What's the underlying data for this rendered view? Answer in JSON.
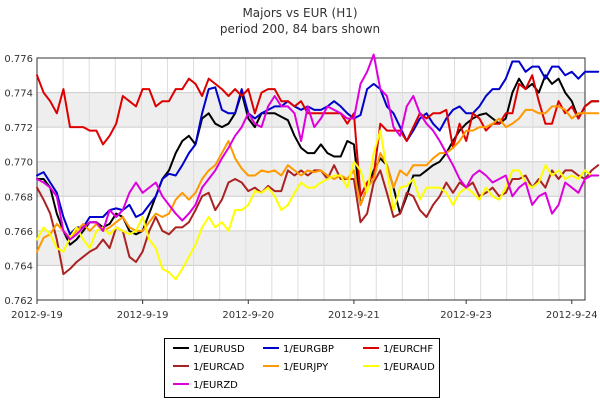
{
  "chart_data": {
    "type": "line",
    "title": "Majors vs EUR (H1)",
    "subtitle": "period 200, 84 bars shown",
    "ylim": [
      0.762,
      0.776
    ],
    "y_ticks": [
      "0.762",
      "0.764",
      "0.766",
      "0.768",
      "0.770",
      "0.772",
      "0.774",
      "0.776"
    ],
    "x_range": [
      0,
      83
    ],
    "x_ticks": [
      {
        "label": "2012-9-19",
        "index": 0
      },
      {
        "label": "2012-9-19",
        "index": 16
      },
      {
        "label": "2012-9-20",
        "index": 32
      },
      {
        "label": "2012-9-21",
        "index": 48
      },
      {
        "label": "2012-9-23",
        "index": 65
      },
      {
        "label": "2012-9-24",
        "index": 81
      }
    ],
    "grid": true,
    "legend_position": "bottom",
    "series": [
      {
        "name": "1/EURUSD",
        "color": "#000000",
        "values": [
          0.769,
          0.769,
          0.7685,
          0.767,
          0.766,
          0.7652,
          0.7655,
          0.766,
          0.7665,
          0.7665,
          0.7662,
          0.7664,
          0.767,
          0.7668,
          0.766,
          0.7658,
          0.766,
          0.767,
          0.768,
          0.769,
          0.7695,
          0.7705,
          0.7712,
          0.7715,
          0.771,
          0.7725,
          0.7728,
          0.7722,
          0.772,
          0.7722,
          0.7728,
          0.774,
          0.7725,
          0.772,
          0.7728,
          0.7728,
          0.7728,
          0.7726,
          0.7724,
          0.7715,
          0.7708,
          0.7705,
          0.7705,
          0.771,
          0.7705,
          0.7703,
          0.7703,
          0.7712,
          0.771,
          0.7675,
          0.7685,
          0.7695,
          0.7702,
          0.7698,
          0.7685,
          0.767,
          0.768,
          0.7692,
          0.7692,
          0.7695,
          0.7698,
          0.77,
          0.7705,
          0.7712,
          0.7718,
          0.7722,
          0.7725,
          0.7727,
          0.7728,
          0.7725,
          0.7722,
          0.7725,
          0.774,
          0.7748,
          0.7742,
          0.7745,
          0.774,
          0.775,
          0.7745,
          0.7748,
          0.774,
          0.7735,
          0.7725,
          0.7732,
          0.7735,
          0.7735
        ]
      },
      {
        "name": "1/EURGBP",
        "color": "#0000cc",
        "values": [
          0.7692,
          0.7694,
          0.7688,
          0.7682,
          0.7668,
          0.7658,
          0.7662,
          0.7662,
          0.7668,
          0.7668,
          0.7668,
          0.7672,
          0.7673,
          0.7672,
          0.7675,
          0.7668,
          0.767,
          0.7675,
          0.768,
          0.769,
          0.7693,
          0.7692,
          0.7698,
          0.7705,
          0.771,
          0.7728,
          0.7742,
          0.7743,
          0.773,
          0.7728,
          0.7728,
          0.7742,
          0.7728,
          0.7725,
          0.7728,
          0.773,
          0.7732,
          0.7732,
          0.7735,
          0.7732,
          0.773,
          0.7732,
          0.773,
          0.773,
          0.7732,
          0.7735,
          0.7732,
          0.7728,
          0.7725,
          0.7727,
          0.7742,
          0.7745,
          0.7742,
          0.7732,
          0.7728,
          0.772,
          0.7712,
          0.7718,
          0.7725,
          0.7728,
          0.7722,
          0.7718,
          0.7725,
          0.773,
          0.7732,
          0.7728,
          0.7728,
          0.7732,
          0.7738,
          0.7742,
          0.7742,
          0.7748,
          0.7758,
          0.7758,
          0.7752,
          0.7755,
          0.7755,
          0.7748,
          0.7755,
          0.7755,
          0.775,
          0.7752,
          0.7748,
          0.7752,
          0.7752,
          0.7752
        ]
      },
      {
        "name": "1/EURCHF",
        "color": "#dd0000",
        "values": [
          0.775,
          0.774,
          0.7735,
          0.7728,
          0.7742,
          0.772,
          0.772,
          0.772,
          0.7718,
          0.7718,
          0.771,
          0.7715,
          0.7722,
          0.7738,
          0.7735,
          0.7732,
          0.7742,
          0.7742,
          0.7732,
          0.7735,
          0.7735,
          0.7742,
          0.7742,
          0.7748,
          0.7745,
          0.7738,
          0.7748,
          0.7745,
          0.7742,
          0.7738,
          0.7742,
          0.7738,
          0.7742,
          0.7728,
          0.774,
          0.7742,
          0.7742,
          0.7735,
          0.7735,
          0.7732,
          0.7735,
          0.7728,
          0.7728,
          0.7728,
          0.7728,
          0.7728,
          0.7728,
          0.7722,
          0.7728,
          0.768,
          0.7688,
          0.7692,
          0.7722,
          0.7718,
          0.7718,
          0.7718,
          0.7712,
          0.772,
          0.7728,
          0.7725,
          0.7728,
          0.7728,
          0.773,
          0.7708,
          0.7722,
          0.7712,
          0.7728,
          0.7725,
          0.7718,
          0.7722,
          0.7722,
          0.7728,
          0.7728,
          0.7745,
          0.7742,
          0.775,
          0.7735,
          0.7722,
          0.7722,
          0.7735,
          0.7728,
          0.7732,
          0.7725,
          0.7732,
          0.7735,
          0.7735
        ]
      },
      {
        "name": "1/EURCAD",
        "color": "#aa2222",
        "values": [
          0.7685,
          0.7678,
          0.767,
          0.7655,
          0.7635,
          0.7638,
          0.7642,
          0.7645,
          0.7648,
          0.765,
          0.7655,
          0.765,
          0.7662,
          0.766,
          0.7645,
          0.7642,
          0.7648,
          0.766,
          0.7668,
          0.766,
          0.7658,
          0.7662,
          0.7662,
          0.7665,
          0.7672,
          0.768,
          0.7682,
          0.7672,
          0.7678,
          0.7688,
          0.769,
          0.7688,
          0.7683,
          0.7685,
          0.7682,
          0.7686,
          0.7683,
          0.7683,
          0.7695,
          0.7692,
          0.7695,
          0.7692,
          0.7695,
          0.7695,
          0.769,
          0.7698,
          0.769,
          0.769,
          0.769,
          0.7665,
          0.767,
          0.7688,
          0.7695,
          0.7682,
          0.7668,
          0.767,
          0.7682,
          0.768,
          0.7672,
          0.7668,
          0.7675,
          0.768,
          0.7688,
          0.7682,
          0.7688,
          0.7685,
          0.7688,
          0.768,
          0.7682,
          0.7685,
          0.768,
          0.7682,
          0.769,
          0.769,
          0.7692,
          0.7685,
          0.769,
          0.7685,
          0.7695,
          0.769,
          0.7695,
          0.7695,
          0.7692,
          0.769,
          0.7695,
          0.7698
        ]
      },
      {
        "name": "1/EURJPY",
        "color": "#ff9900",
        "values": [
          0.7648,
          0.7656,
          0.7658,
          0.7664,
          0.766,
          0.7656,
          0.766,
          0.7664,
          0.766,
          0.7664,
          0.766,
          0.7662,
          0.7665,
          0.7668,
          0.7662,
          0.766,
          0.766,
          0.7665,
          0.767,
          0.7668,
          0.767,
          0.7678,
          0.7682,
          0.7678,
          0.7682,
          0.769,
          0.7695,
          0.7698,
          0.7705,
          0.7712,
          0.7702,
          0.7696,
          0.7692,
          0.7692,
          0.7695,
          0.7694,
          0.7695,
          0.7692,
          0.7698,
          0.7695,
          0.7692,
          0.7695,
          0.7694,
          0.7695,
          0.7692,
          0.769,
          0.7692,
          0.769,
          0.7695,
          0.7675,
          0.7685,
          0.769,
          0.7705,
          0.7698,
          0.7685,
          0.7695,
          0.7692,
          0.7698,
          0.7698,
          0.7698,
          0.7702,
          0.7705,
          0.7705,
          0.7708,
          0.7712,
          0.7718,
          0.7718,
          0.772,
          0.772,
          0.7722,
          0.7725,
          0.772,
          0.7722,
          0.7725,
          0.773,
          0.773,
          0.7728,
          0.7728,
          0.7732,
          0.7732,
          0.773,
          0.7725,
          0.7728,
          0.7728,
          0.7728,
          0.7728
        ]
      },
      {
        "name": "1/EURAUD",
        "color": "#ffff00",
        "values": [
          0.7655,
          0.7662,
          0.7658,
          0.765,
          0.7648,
          0.7656,
          0.7662,
          0.7655,
          0.765,
          0.766,
          0.7662,
          0.7658,
          0.7662,
          0.766,
          0.7658,
          0.766,
          0.7668,
          0.7655,
          0.765,
          0.7638,
          0.7636,
          0.7632,
          0.7638,
          0.7645,
          0.7652,
          0.7662,
          0.7668,
          0.7662,
          0.7665,
          0.766,
          0.7672,
          0.7672,
          0.7675,
          0.7683,
          0.7682,
          0.7685,
          0.768,
          0.7672,
          0.7675,
          0.7682,
          0.7688,
          0.7685,
          0.7685,
          0.7688,
          0.769,
          0.7692,
          0.7692,
          0.7685,
          0.77,
          0.7695,
          0.7682,
          0.7705,
          0.7718,
          0.7695,
          0.7672,
          0.7685,
          0.7686,
          0.769,
          0.7678,
          0.7685,
          0.7685,
          0.7685,
          0.7682,
          0.7675,
          0.7682,
          0.7685,
          0.7682,
          0.7678,
          0.7685,
          0.768,
          0.7678,
          0.7685,
          0.7695,
          0.7695,
          0.7688,
          0.7685,
          0.7688,
          0.7698,
          0.7692,
          0.7695,
          0.769,
          0.7692,
          0.769,
          0.7695,
          0.7692,
          0.7692
        ]
      },
      {
        "name": "1/EURZD",
        "color": "#dd00dd",
        "values": [
          0.769,
          0.7688,
          0.7685,
          0.768,
          0.766,
          0.7655,
          0.7658,
          0.7662,
          0.7665,
          0.7665,
          0.766,
          0.7672,
          0.7668,
          0.7672,
          0.7682,
          0.7688,
          0.7682,
          0.7685,
          0.7688,
          0.768,
          0.7675,
          0.767,
          0.7666,
          0.767,
          0.7675,
          0.7685,
          0.769,
          0.7695,
          0.7702,
          0.7708,
          0.7715,
          0.772,
          0.7728,
          0.7722,
          0.772,
          0.7732,
          0.7738,
          0.7732,
          0.7732,
          0.7728,
          0.7712,
          0.7732,
          0.772,
          0.7725,
          0.7732,
          0.773,
          0.7728,
          0.7725,
          0.7725,
          0.7745,
          0.7752,
          0.7762,
          0.7742,
          0.7738,
          0.772,
          0.7715,
          0.7732,
          0.7738,
          0.7728,
          0.7722,
          0.7718,
          0.7712,
          0.7705,
          0.7698,
          0.769,
          0.7685,
          0.7692,
          0.7695,
          0.7692,
          0.7688,
          0.769,
          0.7692,
          0.768,
          0.7685,
          0.7688,
          0.7675,
          0.768,
          0.7682,
          0.767,
          0.7675,
          0.7688,
          0.7685,
          0.7682,
          0.769,
          0.7692,
          0.7692
        ]
      }
    ]
  }
}
